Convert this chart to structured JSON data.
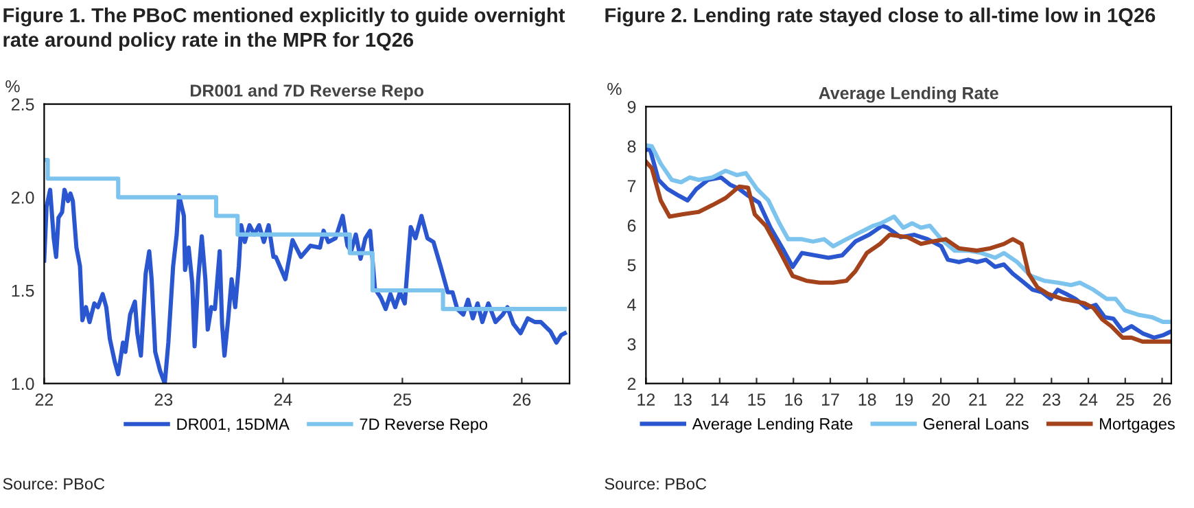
{
  "chart_data": [
    {
      "type": "line",
      "title": "Figure 1. The PBoC mentioned explicitly to guide overnight\nrate around policy rate in the MPR for 1Q26",
      "subtitle": "DR001 and 7D Reverse Repo",
      "ylabel": "%",
      "xlim": [
        22,
        26.4
      ],
      "xticks": [
        22,
        23,
        24,
        25,
        26
      ],
      "ylim": [
        1.0,
        2.5
      ],
      "yticks": [
        {
          "value": 1.0,
          "label": "1.0"
        },
        {
          "value": 1.5,
          "label": "1.5"
        },
        {
          "value": 2.0,
          "label": "2.0"
        },
        {
          "value": 2.5,
          "label": "2.5"
        }
      ],
      "grid": false,
      "legend": "bottom",
      "annotations": [
        "Source: PBoC"
      ],
      "series": [
        {
          "name": "DR001, 15DMA",
          "color": "#2a56d0",
          "x": [
            22.0,
            22.02,
            22.05,
            22.08,
            22.1,
            22.12,
            22.15,
            22.17,
            22.2,
            22.22,
            22.24,
            22.27,
            22.3,
            22.32,
            22.35,
            22.38,
            22.42,
            22.45,
            22.49,
            22.52,
            22.55,
            22.59,
            22.62,
            22.66,
            22.68,
            22.72,
            22.76,
            22.78,
            22.81,
            22.85,
            22.88,
            22.9,
            22.93,
            22.97,
            23.01,
            23.04,
            23.08,
            23.11,
            23.13,
            23.17,
            23.18,
            23.21,
            23.24,
            23.26,
            23.29,
            23.32,
            23.35,
            23.37,
            23.4,
            23.43,
            23.47,
            23.49,
            23.51,
            23.54,
            23.57,
            23.6,
            23.63,
            23.65,
            23.68,
            23.72,
            23.76,
            23.8,
            23.84,
            23.88,
            23.92,
            23.94,
            24.02,
            24.08,
            24.15,
            24.23,
            24.31,
            24.34,
            24.38,
            24.44,
            24.5,
            24.54,
            24.57,
            24.61,
            24.65,
            24.69,
            24.73,
            24.77,
            24.82,
            24.86,
            24.9,
            24.94,
            24.98,
            25.02,
            25.05,
            25.07,
            25.11,
            25.16,
            25.21,
            25.26,
            25.32,
            25.38,
            25.42,
            25.46,
            25.51,
            25.55,
            25.59,
            25.63,
            25.67,
            25.72,
            25.78,
            25.84,
            25.88,
            25.93,
            25.99,
            26.05,
            26.11,
            26.16,
            26.24,
            26.29,
            26.33,
            26.36
          ],
          "values": [
            1.66,
            1.95,
            2.04,
            1.78,
            1.68,
            1.89,
            1.92,
            2.04,
            1.98,
            2.02,
            1.98,
            1.73,
            1.63,
            1.34,
            1.41,
            1.33,
            1.43,
            1.41,
            1.48,
            1.41,
            1.24,
            1.12,
            1.05,
            1.22,
            1.17,
            1.37,
            1.44,
            1.27,
            1.15,
            1.59,
            1.71,
            1.56,
            1.17,
            1.07,
            1.0,
            1.22,
            1.63,
            1.8,
            2.01,
            1.9,
            1.61,
            1.73,
            1.54,
            1.2,
            1.56,
            1.79,
            1.56,
            1.29,
            1.41,
            1.4,
            1.71,
            1.32,
            1.15,
            1.34,
            1.56,
            1.41,
            1.63,
            1.85,
            1.76,
            1.85,
            1.8,
            1.85,
            1.76,
            1.85,
            1.68,
            1.68,
            1.56,
            1.77,
            1.68,
            1.74,
            1.73,
            1.82,
            1.76,
            1.78,
            1.9,
            1.74,
            1.71,
            1.8,
            1.67,
            1.78,
            1.82,
            1.51,
            1.46,
            1.4,
            1.48,
            1.41,
            1.49,
            1.43,
            1.68,
            1.84,
            1.78,
            1.9,
            1.78,
            1.76,
            1.63,
            1.49,
            1.49,
            1.4,
            1.37,
            1.45,
            1.35,
            1.43,
            1.33,
            1.43,
            1.33,
            1.37,
            1.41,
            1.32,
            1.27,
            1.35,
            1.33,
            1.33,
            1.28,
            1.22,
            1.26,
            1.27
          ]
        },
        {
          "name": "7D Reverse Repo",
          "color": "#7cc3ee",
          "type": "step",
          "x": [
            22.0,
            22.03,
            22.62,
            23.44,
            23.62,
            24.56,
            24.75,
            25.34,
            26.36
          ],
          "values": [
            2.2,
            2.1,
            2.0,
            1.9,
            1.8,
            1.7,
            1.5,
            1.4,
            1.4
          ]
        }
      ]
    },
    {
      "type": "line",
      "title": "Figure 2. Lending rate stayed close to all-time low in 1Q26",
      "subtitle": "Average Lending Rate",
      "ylabel": "%",
      "xlim": [
        12,
        26.25
      ],
      "xticks": [
        12,
        13,
        14,
        15,
        16,
        17,
        18,
        19,
        20,
        21,
        22,
        23,
        24,
        25,
        26
      ],
      "ylim": [
        2,
        9
      ],
      "yticks": [
        2,
        3,
        4,
        5,
        6,
        7,
        8,
        9
      ],
      "grid": false,
      "legend": "bottom",
      "annotations": [
        "Source: PBoC"
      ],
      "series": [
        {
          "name": "Average Lending Rate",
          "color": "#2a56d0",
          "x": [
            12.0,
            12.1,
            12.34,
            12.58,
            12.89,
            13.13,
            13.37,
            13.68,
            14.04,
            14.28,
            14.53,
            14.77,
            15.07,
            15.38,
            15.74,
            15.98,
            16.23,
            16.59,
            16.95,
            17.32,
            17.68,
            18.05,
            18.41,
            18.55,
            18.91,
            19.28,
            19.64,
            20.01,
            20.19,
            20.49,
            20.74,
            20.98,
            21.22,
            21.47,
            21.71,
            21.95,
            22.19,
            22.49,
            22.74,
            22.98,
            23.17,
            23.41,
            23.65,
            23.95,
            24.2,
            24.44,
            24.68,
            24.93,
            25.17,
            25.47,
            25.78,
            26.02,
            26.2
          ],
          "values": [
            7.9,
            7.96,
            7.15,
            6.92,
            6.75,
            6.63,
            6.92,
            7.15,
            7.21,
            7.03,
            6.92,
            6.75,
            6.57,
            5.94,
            5.36,
            4.95,
            5.3,
            5.24,
            5.18,
            5.24,
            5.59,
            5.76,
            5.99,
            5.94,
            5.7,
            5.76,
            5.65,
            5.47,
            5.13,
            5.07,
            5.13,
            5.07,
            5.13,
            4.95,
            5.01,
            4.78,
            4.6,
            4.37,
            4.31,
            4.14,
            4.37,
            4.26,
            4.14,
            3.91,
            3.99,
            3.68,
            3.64,
            3.33,
            3.45,
            3.27,
            3.16,
            3.22,
            3.3
          ]
        },
        {
          "name": "General Loans",
          "color": "#7cc3ee",
          "x": [
            12.0,
            12.16,
            12.4,
            12.7,
            12.95,
            13.19,
            13.43,
            13.8,
            14.16,
            14.47,
            14.71,
            15.01,
            15.32,
            15.62,
            15.86,
            16.23,
            16.53,
            16.83,
            17.08,
            17.44,
            17.8,
            18.17,
            18.37,
            18.73,
            18.98,
            19.22,
            19.46,
            19.7,
            20.01,
            20.37,
            20.74,
            21.1,
            21.47,
            21.71,
            22.07,
            22.44,
            22.8,
            23.17,
            23.53,
            23.77,
            24.14,
            24.5,
            24.74,
            24.99,
            25.35,
            25.72,
            26.02,
            26.2
          ],
          "values": [
            8.02,
            8.0,
            7.56,
            7.15,
            7.09,
            7.21,
            7.15,
            7.21,
            7.38,
            7.27,
            7.32,
            6.92,
            6.63,
            6.05,
            5.65,
            5.65,
            5.59,
            5.65,
            5.47,
            5.65,
            5.82,
            5.99,
            6.05,
            6.22,
            5.94,
            6.05,
            5.94,
            5.99,
            5.65,
            5.36,
            5.36,
            5.3,
            5.18,
            5.3,
            5.07,
            4.72,
            4.6,
            4.55,
            4.49,
            4.55,
            4.37,
            4.14,
            4.14,
            3.85,
            3.74,
            3.68,
            3.56,
            3.56
          ]
        },
        {
          "name": "Mortgages",
          "color": "#a3421b",
          "x": [
            12.0,
            12.16,
            12.4,
            12.64,
            13.01,
            13.43,
            13.8,
            14.16,
            14.53,
            14.77,
            14.95,
            15.25,
            15.62,
            15.98,
            16.35,
            16.71,
            17.08,
            17.44,
            17.68,
            17.99,
            18.35,
            18.61,
            19.1,
            19.46,
            19.77,
            20.13,
            20.49,
            20.98,
            21.34,
            21.71,
            21.95,
            22.19,
            22.38,
            22.62,
            22.92,
            23.29,
            23.65,
            23.89,
            24.14,
            24.38,
            24.62,
            24.93,
            25.17,
            25.47,
            25.84,
            26.2
          ],
          "values": [
            7.61,
            7.44,
            6.63,
            6.22,
            6.28,
            6.34,
            6.51,
            6.69,
            6.98,
            6.95,
            6.28,
            5.99,
            5.36,
            4.72,
            4.6,
            4.55,
            4.55,
            4.6,
            4.84,
            5.3,
            5.53,
            5.76,
            5.7,
            5.53,
            5.59,
            5.65,
            5.42,
            5.36,
            5.42,
            5.53,
            5.65,
            5.53,
            4.78,
            4.43,
            4.26,
            4.14,
            4.08,
            4.03,
            3.91,
            3.62,
            3.45,
            3.16,
            3.16,
            3.06,
            3.06,
            3.06
          ]
        }
      ]
    }
  ]
}
